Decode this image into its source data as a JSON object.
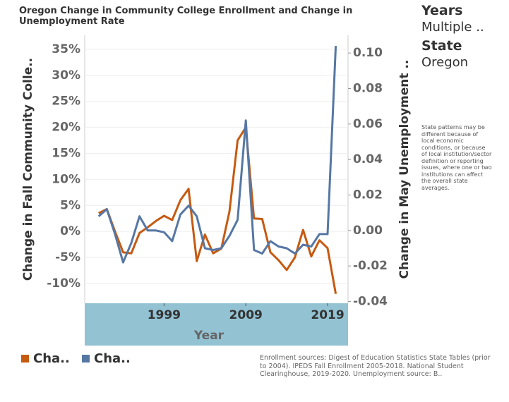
{
  "chart_data": {
    "type": "line",
    "title": "Oregon Change in Community College Enrollment and Change in Unemployment Rate",
    "x_label": "Year",
    "y_label": "Change in Fall Community Colle..",
    "y2_label": "Change in May Unemployment ..",
    "x": [
      1991,
      1992,
      1993,
      1994,
      1995,
      1996,
      1997,
      1998,
      1999,
      2000,
      2001,
      2002,
      2003,
      2004,
      2005,
      2006,
      2007,
      2008,
      2009,
      2010,
      2011,
      2012,
      2013,
      2014,
      2015,
      2016,
      2017,
      2018,
      2019,
      2020
    ],
    "series": [
      {
        "name": "Cha..",
        "color": "#c65a11",
        "values": [
          3.5,
          4.3,
          0,
          -4,
          -4.2,
          -0.3,
          0.8,
          2,
          3,
          2.2,
          6,
          8.2,
          -5.7,
          -0.6,
          -4.2,
          -3.3,
          3.8,
          17.5,
          20,
          2.5,
          2.4,
          -4,
          -5.5,
          -7.4,
          -5,
          0.3,
          -4.8,
          -1.7,
          -3.2,
          -12
        ]
      },
      {
        "name": "Cha..",
        "color": "#5677a4",
        "axis": "y2",
        "values": [
          0.008,
          0.012,
          -0.002,
          -0.018,
          -0.007,
          0.008,
          0,
          0,
          -0.001,
          -0.006,
          0.009,
          0.014,
          0.008,
          -0.01,
          -0.011,
          -0.01,
          -0.003,
          0.006,
          0.062,
          -0.011,
          -0.013,
          -0.006,
          -0.009,
          -0.01,
          -0.013,
          -0.008,
          -0.009,
          -0.002,
          -0.002,
          0.104
        ]
      }
    ],
    "xlim": [
      1989.3,
      2021.5
    ],
    "xticks": [
      1999,
      2009,
      2019
    ],
    "ylim": [
      -13.8,
      37.7
    ],
    "yticks": [
      {
        "value": -10,
        "label": "-10%"
      },
      {
        "value": -5,
        "label": "-5%"
      },
      {
        "value": 0,
        "label": "0%"
      },
      {
        "value": 5,
        "label": "5%"
      },
      {
        "value": 10,
        "label": "10%"
      },
      {
        "value": 15,
        "label": "15%"
      },
      {
        "value": 20,
        "label": "20%"
      },
      {
        "value": 25,
        "label": "25%"
      },
      {
        "value": 30,
        "label": "30%"
      },
      {
        "value": 35,
        "label": "35%"
      }
    ],
    "y2lim": [
      -0.041,
      0.11
    ],
    "y2ticks": [
      -0.04,
      -0.02,
      {
        "value": 0,
        "label": "0.00"
      },
      0.02,
      0.04,
      0.06,
      0.08,
      {
        "value": 0.1,
        "label": "0.10"
      }
    ],
    "grid": true,
    "filters": [
      {
        "label": "Years",
        "value": "Multiple .."
      },
      {
        "label": "State",
        "value": "Oregon"
      }
    ],
    "note": "State patterns may be different because of local economic conditions, or because of local institution/sector definition or reporting issues, where one or two institutions can affect the overall state averages.",
    "source": "Enrollment sources:  Digest of Education Statistics State Tables (prior to 2004). IPEDS Fall Enrollment 2005-2018. National Student Clearinghouse, 2019-2020.  Unemployment source: B.."
  }
}
